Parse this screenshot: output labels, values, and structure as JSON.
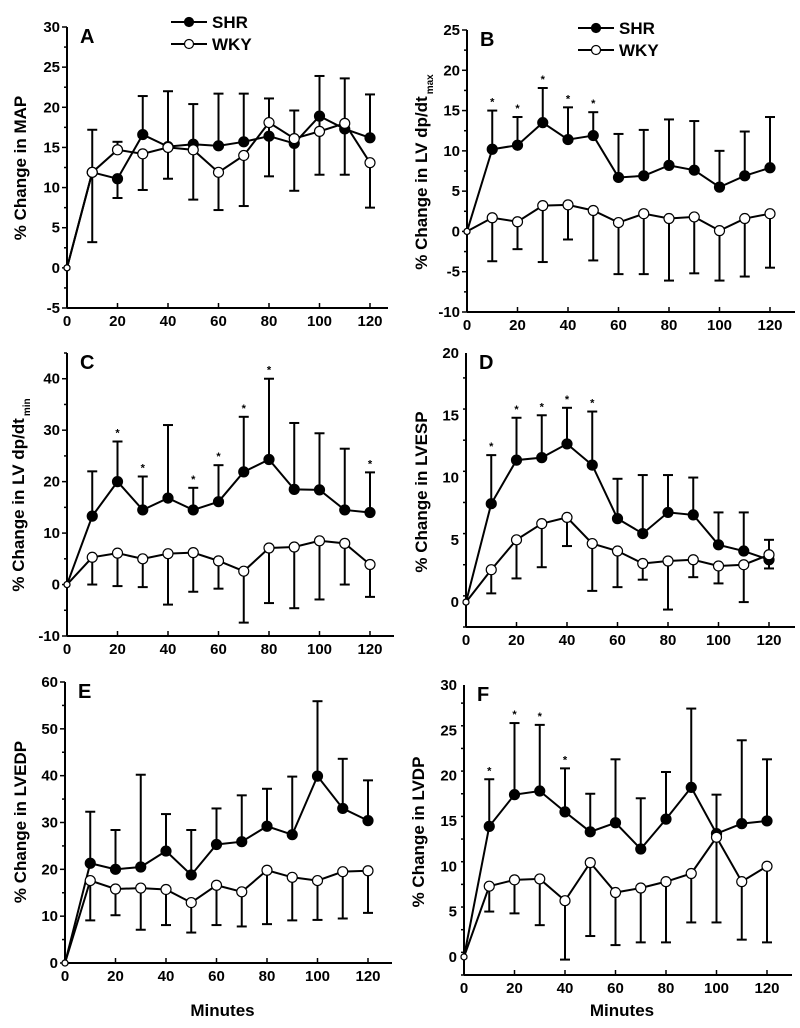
{
  "chart_data": [
    {
      "panel": "A",
      "type": "line",
      "ylabel": "% Change in MAP",
      "ylabel_sub": "",
      "xlabel": "",
      "x": [
        0,
        10,
        20,
        30,
        40,
        50,
        60,
        70,
        80,
        90,
        100,
        110,
        120
      ],
      "xticks": [
        0,
        20,
        40,
        60,
        80,
        100,
        120
      ],
      "xlim": [
        0,
        128
      ],
      "ylim": [
        -5,
        30
      ],
      "yticks": [
        -5,
        0,
        5,
        10,
        15,
        20,
        25,
        30
      ],
      "legend": [
        "SHR",
        "WKY"
      ],
      "legend_position": "top-center",
      "series": [
        {
          "name": "SHR",
          "marker": "filled-circle",
          "values": [
            0,
            11.9,
            11.1,
            16.6,
            15.1,
            15.4,
            15.2,
            15.7,
            16.4,
            15.5,
            18.9,
            17.3,
            16.2
          ],
          "error_upper": [
            null,
            null,
            null,
            21.4,
            22.0,
            20.4,
            21.7,
            21.7,
            21.1,
            19.6,
            23.9,
            23.6,
            21.6
          ],
          "error_lower": [
            null,
            null,
            8.7,
            null,
            null,
            null,
            null,
            null,
            11.4,
            null,
            11.6,
            11.6,
            null
          ],
          "significant": []
        },
        {
          "name": "WKY",
          "marker": "open-circle",
          "values": [
            0,
            11.9,
            14.7,
            14.2,
            15.0,
            14.7,
            11.9,
            14.0,
            18.1,
            16.1,
            17.0,
            18.0,
            13.1
          ],
          "error_upper": [
            null,
            17.2,
            15.7,
            null,
            null,
            null,
            null,
            null,
            null,
            null,
            null,
            null,
            null
          ],
          "error_lower": [
            null,
            3.2,
            null,
            9.7,
            11.1,
            8.5,
            7.2,
            7.7,
            null,
            9.6,
            null,
            null,
            7.5
          ],
          "significant": []
        }
      ]
    },
    {
      "panel": "B",
      "type": "line",
      "ylabel": "% Change in LV dp/dt",
      "ylabel_sub": "max",
      "xlabel": "",
      "x": [
        0,
        10,
        20,
        30,
        40,
        50,
        60,
        70,
        80,
        90,
        100,
        110,
        120
      ],
      "xticks": [
        0,
        20,
        40,
        60,
        80,
        100,
        120
      ],
      "xlim": [
        0,
        128
      ],
      "ylim": [
        -10,
        25
      ],
      "yticks": [
        -10,
        -5,
        0,
        5,
        10,
        15,
        20,
        25
      ],
      "legend": [
        "SHR",
        "WKY"
      ],
      "legend_position": "top-center",
      "series": [
        {
          "name": "SHR",
          "marker": "filled-circle",
          "values": [
            0,
            10.2,
            10.7,
            13.5,
            11.4,
            11.9,
            6.7,
            6.9,
            8.2,
            7.6,
            5.5,
            6.9,
            7.9
          ],
          "error_upper": [
            null,
            15.0,
            14.2,
            17.8,
            15.4,
            14.8,
            12.1,
            12.6,
            13.9,
            13.7,
            10.0,
            12.4,
            14.2
          ],
          "error_lower": [],
          "significant": [
            10,
            20,
            30,
            40,
            50
          ]
        },
        {
          "name": "WKY",
          "marker": "open-circle",
          "values": [
            0,
            1.7,
            1.2,
            3.2,
            3.3,
            2.6,
            1.1,
            2.2,
            1.6,
            1.8,
            0.1,
            1.6,
            2.2
          ],
          "error_upper": [],
          "error_lower": [
            null,
            -3.7,
            -2.2,
            -3.8,
            -1.0,
            -3.6,
            -5.3,
            -5.3,
            -6.1,
            -5.2,
            -6.1,
            -5.6,
            -4.5
          ],
          "significant": []
        }
      ]
    },
    {
      "panel": "C",
      "type": "line",
      "ylabel": "% Change in LV dp/dt",
      "ylabel_sub": "min",
      "xlabel": "",
      "x": [
        0,
        10,
        20,
        30,
        40,
        50,
        60,
        70,
        80,
        90,
        100,
        110,
        120
      ],
      "xticks": [
        0,
        20,
        40,
        60,
        80,
        100,
        120
      ],
      "xlim": [
        0,
        128
      ],
      "ylim": [
        -10,
        45
      ],
      "yticks": [
        -10,
        0,
        10,
        20,
        30,
        40
      ],
      "legend": [],
      "series": [
        {
          "name": "SHR",
          "marker": "filled-circle",
          "values": [
            0,
            13.3,
            20.0,
            14.5,
            16.8,
            14.5,
            16.1,
            21.9,
            24.3,
            18.5,
            18.4,
            14.5,
            14.0
          ],
          "error_upper": [
            null,
            22.0,
            27.8,
            21.0,
            31.0,
            18.8,
            23.2,
            32.6,
            40.0,
            31.4,
            29.4,
            26.4,
            21.8
          ],
          "error_lower": [],
          "significant": [
            20,
            30,
            50,
            60,
            70,
            80,
            120
          ]
        },
        {
          "name": "WKY",
          "marker": "open-circle",
          "values": [
            0,
            5.3,
            6.1,
            5.0,
            6.0,
            6.2,
            4.6,
            2.6,
            7.1,
            7.3,
            8.5,
            8.0,
            3.9
          ],
          "error_upper": [],
          "error_lower": [
            null,
            0.0,
            -0.3,
            -0.5,
            -3.9,
            -1.4,
            -0.8,
            -7.4,
            -3.6,
            -4.6,
            -2.9,
            0.0,
            -2.4
          ],
          "significant": []
        }
      ]
    },
    {
      "panel": "D",
      "type": "line",
      "ylabel": "% Change in LVESP",
      "ylabel_sub": "",
      "xlabel": "",
      "x": [
        0,
        10,
        20,
        30,
        40,
        50,
        60,
        70,
        80,
        90,
        100,
        110,
        120
      ],
      "xticks": [
        0,
        20,
        40,
        60,
        80,
        100,
        120
      ],
      "xlim": [
        0,
        128
      ],
      "ylim": [
        -2,
        20
      ],
      "yticks": [
        0,
        5,
        10,
        15,
        20
      ],
      "legend": [],
      "series": [
        {
          "name": "SHR",
          "marker": "filled-circle",
          "values": [
            0,
            7.9,
            11.4,
            11.6,
            12.7,
            11.0,
            6.7,
            5.5,
            7.2,
            7.0,
            4.6,
            4.1,
            3.4
          ],
          "error_upper": [
            null,
            11.8,
            14.8,
            15.0,
            15.6,
            15.3,
            9.9,
            10.2,
            10.2,
            10.0,
            7.2,
            7.2,
            5.0
          ],
          "error_lower": [],
          "significant": [
            10,
            20,
            30,
            40,
            50
          ]
        },
        {
          "name": "WKY",
          "marker": "open-circle",
          "values": [
            0,
            2.6,
            5.0,
            6.3,
            6.8,
            4.7,
            4.1,
            3.1,
            3.3,
            3.4,
            2.9,
            3.0,
            3.8
          ],
          "error_upper": [],
          "error_lower": [
            null,
            0.7,
            1.9,
            2.8,
            4.5,
            0.9,
            1.2,
            1.8,
            -0.6,
            2.0,
            1.5,
            0.0,
            2.7
          ],
          "significant": []
        }
      ]
    },
    {
      "panel": "E",
      "type": "line",
      "ylabel": "% Change in LVEDP",
      "ylabel_sub": "",
      "xlabel": "Minutes",
      "x": [
        0,
        10,
        20,
        30,
        40,
        50,
        60,
        70,
        80,
        90,
        100,
        110,
        120
      ],
      "xticks": [
        0,
        20,
        40,
        60,
        80,
        100,
        120
      ],
      "xlim": [
        0,
        130
      ],
      "ylim": [
        0,
        60
      ],
      "yticks": [
        0,
        10,
        20,
        30,
        40,
        50,
        60
      ],
      "legend": [],
      "series": [
        {
          "name": "SHR",
          "marker": "filled-circle",
          "values": [
            0,
            21.3,
            20.0,
            20.5,
            23.9,
            18.8,
            25.3,
            25.9,
            29.2,
            27.4,
            39.9,
            33.0,
            30.4
          ],
          "error_upper": [
            null,
            32.3,
            28.4,
            40.2,
            31.8,
            28.4,
            33.0,
            35.8,
            37.2,
            39.8,
            55.9,
            43.6,
            39.0
          ],
          "error_lower": [],
          "significant": []
        },
        {
          "name": "WKY",
          "marker": "open-circle",
          "values": [
            0,
            17.6,
            15.8,
            16.0,
            15.7,
            12.9,
            16.6,
            15.2,
            19.8,
            18.3,
            17.6,
            19.5,
            19.7
          ],
          "error_upper": [],
          "error_lower": [
            null,
            9.1,
            10.2,
            7.1,
            8.1,
            6.5,
            8.1,
            7.8,
            8.3,
            9.1,
            9.2,
            9.5,
            10.7
          ],
          "significant": []
        }
      ]
    },
    {
      "panel": "F",
      "type": "line",
      "ylabel": "% Change in LVDP",
      "ylabel_sub": "",
      "xlabel": "Minutes",
      "x": [
        0,
        10,
        20,
        30,
        40,
        50,
        60,
        70,
        80,
        90,
        100,
        110,
        120
      ],
      "xticks": [
        0,
        20,
        40,
        60,
        80,
        100,
        120
      ],
      "xlim": [
        0,
        130
      ],
      "ylim": [
        -2,
        30
      ],
      "yticks": [
        0,
        5,
        10,
        15,
        20,
        25,
        30
      ],
      "legend": [],
      "series": [
        {
          "name": "SHR",
          "marker": "filled-circle",
          "values": [
            0,
            14.4,
            17.9,
            18.3,
            16.0,
            13.8,
            14.8,
            11.9,
            15.2,
            18.7,
            13.6,
            14.7,
            15.0
          ],
          "error_upper": [
            null,
            19.6,
            25.8,
            25.6,
            20.8,
            18.0,
            21.8,
            17.5,
            20.4,
            27.4,
            17.9,
            23.9,
            21.8
          ],
          "error_lower": [],
          "significant": [
            10,
            20,
            30,
            40
          ]
        },
        {
          "name": "WKY",
          "marker": "open-circle",
          "values": [
            0,
            7.8,
            8.5,
            8.6,
            6.2,
            10.4,
            7.1,
            7.6,
            8.3,
            9.2,
            13.2,
            8.3,
            10.0
          ],
          "error_upper": [],
          "error_lower": [
            null,
            5.0,
            4.8,
            3.5,
            -0.3,
            2.3,
            1.3,
            1.6,
            1.6,
            3.8,
            3.8,
            1.9,
            1.6
          ],
          "significant": []
        }
      ]
    }
  ],
  "panel_labels": [
    "A",
    "B",
    "C",
    "D",
    "E",
    "F"
  ],
  "significance_marker": "*",
  "colors": {
    "line": "#000000",
    "open_marker_fill": "#ffffff"
  }
}
